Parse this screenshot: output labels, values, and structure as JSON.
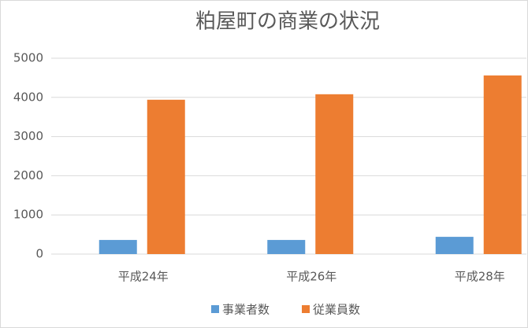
{
  "chart_data": {
    "type": "bar",
    "title": "粕屋町の商業の状況",
    "categories": [
      "平成24年",
      "平成26年",
      "平成28年"
    ],
    "series": [
      {
        "name": "事業者数",
        "color": "#5b9bd5",
        "values": [
          360,
          360,
          440
        ]
      },
      {
        "name": "従業員数",
        "color": "#ed7d31",
        "values": [
          3940,
          4080,
          4560
        ]
      }
    ],
    "ylim": [
      0,
      5000
    ],
    "yticks": [
      0,
      1000,
      2000,
      3000,
      4000,
      5000
    ],
    "grid": true,
    "legend": "bottom"
  }
}
